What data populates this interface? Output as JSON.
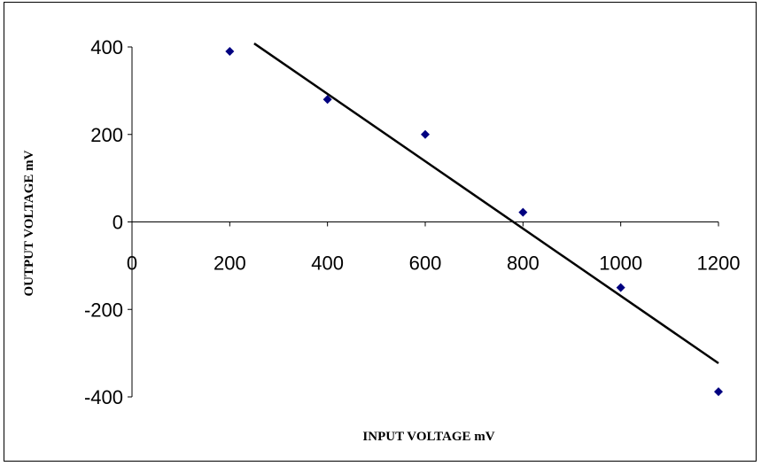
{
  "chart_data": {
    "type": "scatter",
    "title": "",
    "xlabel": "INPUT VOLTAGE mV",
    "ylabel": "OUTPUT VOLTAGE mV",
    "xlim": [
      0,
      1200
    ],
    "ylim": [
      -400,
      400
    ],
    "x_ticks": [
      0,
      200,
      400,
      600,
      800,
      1000,
      1200
    ],
    "y_ticks": [
      400,
      200,
      0,
      -200,
      -400
    ],
    "grid": false,
    "legend": "none",
    "series": [
      {
        "marker": "diamond",
        "color": "#000080",
        "points": [
          {
            "x": 200,
            "y": 390
          },
          {
            "x": 400,
            "y": 280
          },
          {
            "x": 600,
            "y": 200
          },
          {
            "x": 800,
            "y": 22
          },
          {
            "x": 1000,
            "y": -150
          },
          {
            "x": 1200,
            "y": -388
          }
        ]
      }
    ],
    "trendline": {
      "type": "linear",
      "color": "#000000",
      "from": {
        "x": 250,
        "y": 408
      },
      "to": {
        "x": 1200,
        "y": -323
      }
    }
  }
}
